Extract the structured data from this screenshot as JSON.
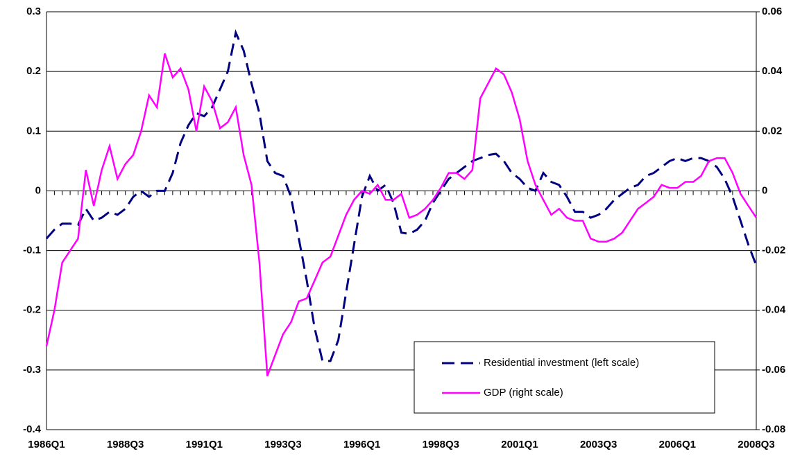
{
  "chart_data": {
    "type": "line",
    "categories": [
      "1986Q1",
      null,
      null,
      null,
      null,
      null,
      null,
      null,
      null,
      null,
      "1988Q3",
      null,
      null,
      null,
      null,
      null,
      null,
      null,
      null,
      null,
      "1991Q1",
      null,
      null,
      null,
      null,
      null,
      null,
      null,
      null,
      null,
      "1993Q3",
      null,
      null,
      null,
      null,
      null,
      null,
      null,
      null,
      null,
      "1996Q1",
      null,
      null,
      null,
      null,
      null,
      null,
      null,
      null,
      null,
      "1998Q3",
      null,
      null,
      null,
      null,
      null,
      null,
      null,
      null,
      null,
      "2001Q1",
      null,
      null,
      null,
      null,
      null,
      null,
      null,
      null,
      null,
      "2003Q3",
      null,
      null,
      null,
      null,
      null,
      null,
      null,
      null,
      null,
      "2006Q1",
      null,
      null,
      null,
      null,
      null,
      null,
      null,
      null,
      null,
      "2008Q3"
    ],
    "series": [
      {
        "name": "Residential investment (left scale)",
        "color": "#000080",
        "dash": true,
        "axis": "y",
        "values": [
          -0.08,
          -0.065,
          -0.055,
          -0.055,
          -0.057,
          -0.03,
          -0.05,
          -0.045,
          -0.035,
          -0.04,
          -0.03,
          -0.01,
          0,
          -0.01,
          0,
          0,
          0.03,
          0.08,
          0.11,
          0.13,
          0.125,
          0.14,
          0.17,
          0.2,
          0.265,
          0.235,
          0.18,
          0.13,
          0.05,
          0.03,
          0.025,
          -0.01,
          -0.08,
          -0.15,
          -0.23,
          -0.285,
          -0.285,
          -0.25,
          -0.17,
          -0.09,
          -0.01,
          0.025,
          0,
          0.01,
          -0.02,
          -0.07,
          -0.072,
          -0.065,
          -0.05,
          -0.02,
          0,
          0.02,
          0.03,
          0.04,
          0.05,
          0.055,
          0.06,
          0.062,
          0.05,
          0.03,
          0.02,
          0.005,
          0,
          0.03,
          0.015,
          0.01,
          -0.01,
          -0.035,
          -0.035,
          -0.045,
          -0.04,
          -0.03,
          -0.015,
          -0.005,
          0.005,
          0.01,
          0.025,
          0.03,
          0.04,
          0.05,
          0.055,
          0.05,
          0.055,
          0.055,
          0.05,
          0.04,
          0.02,
          -0.01,
          -0.05,
          -0.09,
          -0.125
        ]
      },
      {
        "name": "GDP (right scale)",
        "color": "#FF00FF",
        "dash": false,
        "axis": "y2",
        "values": [
          -0.052,
          -0.04,
          -0.024,
          -0.02,
          -0.016,
          0.007,
          -0.005,
          0.007,
          0.015,
          0.004,
          0.009,
          0.012,
          0.02,
          0.032,
          0.028,
          0.046,
          0.038,
          0.041,
          0.034,
          0.02,
          0.035,
          0.03,
          0.021,
          0.023,
          0.028,
          0.012,
          0.002,
          -0.024,
          -0.062,
          -0.055,
          -0.048,
          -0.044,
          -0.037,
          -0.036,
          -0.03,
          -0.024,
          -0.022,
          -0.015,
          -0.008,
          -0.003,
          0,
          -0.001,
          0.002,
          -0.003,
          -0.003,
          -0.001,
          -0.009,
          -0.008,
          -0.006,
          -0.003,
          0.001,
          0.006,
          0.006,
          0.004,
          0.007,
          0.031,
          0.036,
          0.041,
          0.039,
          0.033,
          0.024,
          0.01,
          0.002,
          -0.003,
          -0.008,
          -0.006,
          -0.009,
          -0.01,
          -0.01,
          -0.016,
          -0.017,
          -0.017,
          -0.016,
          -0.014,
          -0.01,
          -0.006,
          -0.004,
          -0.002,
          0.002,
          0.001,
          0.001,
          0.003,
          0.003,
          0.005,
          0.01,
          0.011,
          0.011,
          0.006,
          -0.001,
          -0.005,
          -0.009
        ]
      }
    ],
    "ylim": [
      -0.4,
      0.3
    ],
    "yticks": [
      -0.4,
      -0.3,
      -0.2,
      -0.1,
      0,
      0.1,
      0.2,
      0.3
    ],
    "y2lim": [
      -0.08,
      0.06
    ],
    "y2ticks": [
      -0.08,
      -0.06,
      -0.04,
      -0.02,
      0,
      0.02,
      0.04,
      0.06
    ],
    "grid": true,
    "legend": "lower right"
  }
}
